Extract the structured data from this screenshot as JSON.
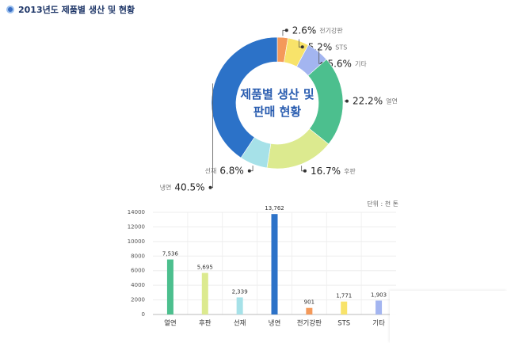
{
  "header": {
    "title": "2013년도 제품별 생산 및 현황"
  },
  "chart_data": [
    {
      "type": "donut",
      "title": "제품별 생산 및 판매 현황",
      "categories": [
        "전기강판",
        "STS",
        "기타",
        "열연",
        "후판",
        "선재",
        "냉연"
      ],
      "values": [
        2.6,
        5.2,
        5.6,
        22.2,
        16.7,
        6.8,
        40.5
      ],
      "value_labels": [
        "2.6%",
        "5.2%",
        "5.6%",
        "22.2%",
        "16.7%",
        "6.8%",
        "40.5%"
      ],
      "colors": [
        "#f4995a",
        "#f8e36a",
        "#a3b5f0",
        "#4cbf8e",
        "#dcea8f",
        "#a6e1e8",
        "#2c72c8"
      ]
    },
    {
      "type": "bar",
      "unit_label": "단위 : 천 톤",
      "categories": [
        "열연",
        "후판",
        "선재",
        "냉연",
        "전기강판",
        "STS",
        "기타"
      ],
      "values": [
        7536,
        5695,
        2339,
        13762,
        901,
        1771,
        1903
      ],
      "value_labels": [
        "7,536",
        "5,695",
        "2,339",
        "13,762",
        "901",
        "1,771",
        "1,903"
      ],
      "colors": [
        "#4cbf8e",
        "#dcea8f",
        "#a6e1e8",
        "#2c72c8",
        "#f4995a",
        "#f8e36a",
        "#a3b5f0"
      ],
      "ylim": [
        0,
        14000
      ],
      "yticks": [
        0,
        2000,
        4000,
        6000,
        8000,
        10000,
        12000,
        14000
      ],
      "grid": true
    }
  ]
}
